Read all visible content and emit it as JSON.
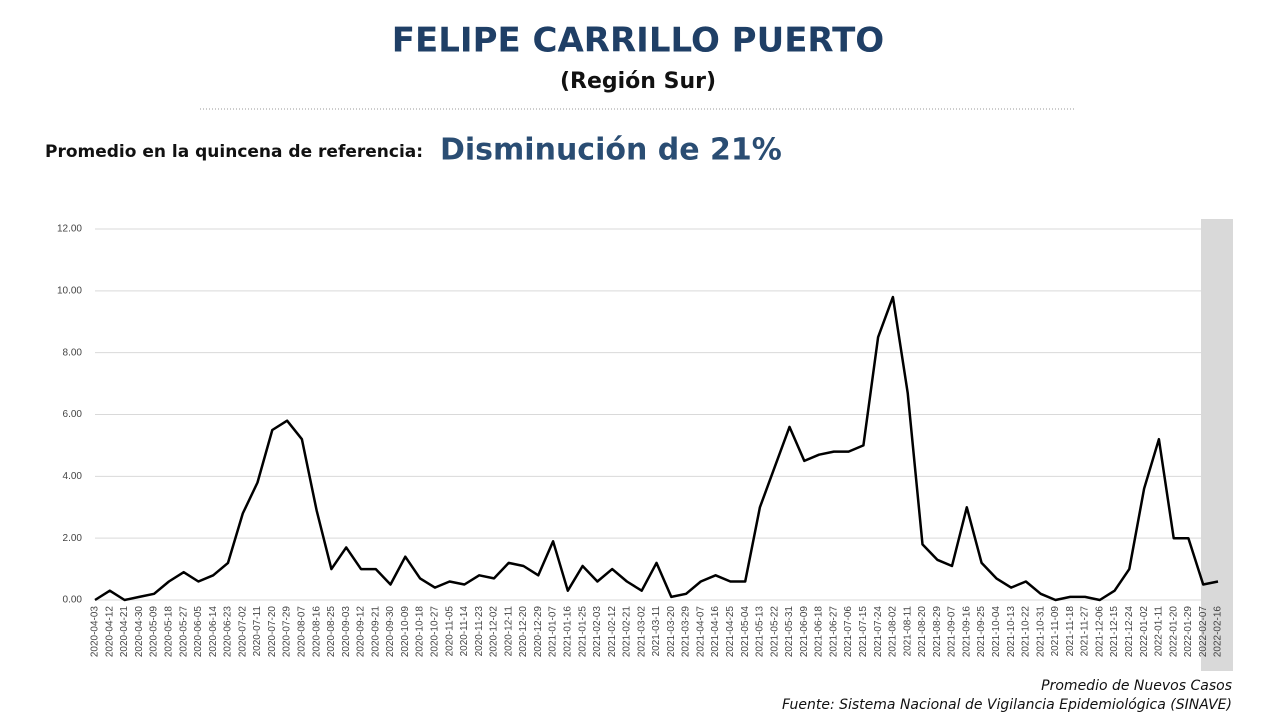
{
  "chart_data": {
    "type": "line",
    "title": "FELIPE CARRILLO PUERTO",
    "subtitle": "(Región Sur)",
    "reference_label": "Promedio en la quincena de referencia:",
    "reference_value": "Disminución de 21%",
    "series_label": "Promedio de Nuevos Casos",
    "source": "Fuente: Sistema Nacional de Vigilancia Epidemiológica (SINAVE)",
    "categories": [
      "2020-04-03",
      "2020-04-12",
      "2020-04-21",
      "2020-04-30",
      "2020-05-09",
      "2020-05-18",
      "2020-05-27",
      "2020-06-05",
      "2020-06-14",
      "2020-06-23",
      "2020-07-02",
      "2020-07-11",
      "2020-07-20",
      "2020-07-29",
      "2020-08-07",
      "2020-08-16",
      "2020-08-25",
      "2020-09-03",
      "2020-09-12",
      "2020-09-21",
      "2020-09-30",
      "2020-10-09",
      "2020-10-18",
      "2020-10-27",
      "2020-11-05",
      "2020-11-14",
      "2020-11-23",
      "2020-12-02",
      "2020-12-11",
      "2020-12-20",
      "2020-12-29",
      "2021-01-07",
      "2021-01-16",
      "2021-01-25",
      "2021-02-03",
      "2021-02-12",
      "2021-02-21",
      "2021-03-02",
      "2021-03-11",
      "2021-03-20",
      "2021-03-29",
      "2021-04-07",
      "2021-04-16",
      "2021-04-25",
      "2021-05-04",
      "2021-05-13",
      "2021-05-22",
      "2021-05-31",
      "2021-06-09",
      "2021-06-18",
      "2021-06-27",
      "2021-07-06",
      "2021-07-15",
      "2021-07-24",
      "2021-08-02",
      "2021-08-11",
      "2021-08-20",
      "2021-08-29",
      "2021-09-07",
      "2021-09-16",
      "2021-09-25",
      "2021-10-04",
      "2021-10-13",
      "2021-10-22",
      "2021-10-31",
      "2021-11-09",
      "2021-11-18",
      "2021-11-27",
      "2021-12-06",
      "2021-12-15",
      "2021-12-24",
      "2022-01-02",
      "2022-01-11",
      "2022-01-20",
      "2022-01-29",
      "2022-02-07",
      "2022-02-16"
    ],
    "values": [
      0,
      0.3,
      0,
      0.1,
      0.2,
      0.6,
      0.9,
      0.6,
      0.8,
      1.2,
      2.8,
      3.8,
      5.5,
      5.8,
      5.2,
      2.9,
      1.0,
      1.7,
      1.0,
      1.0,
      0.5,
      1.4,
      0.7,
      0.4,
      0.6,
      0.5,
      0.8,
      0.7,
      1.2,
      1.1,
      0.8,
      1.9,
      0.3,
      1.1,
      0.6,
      1.0,
      0.6,
      0.3,
      1.2,
      0.1,
      0.2,
      0.6,
      0.8,
      0.6,
      0.6,
      3.0,
      4.3,
      5.6,
      4.5,
      4.7,
      4.8,
      4.8,
      5.0,
      8.5,
      9.8,
      6.7,
      1.8,
      1.3,
      1.1,
      3.0,
      1.2,
      0.7,
      0.4,
      0.6,
      0.2,
      0,
      0.1,
      0.1,
      0,
      0.3,
      1.0,
      3.6,
      5.2,
      2.0,
      2.0,
      0.5,
      0.6
    ],
    "color": "#000000",
    "ylim": [
      0,
      12
    ],
    "yticks": [
      {
        "value": 0,
        "label": "0.00"
      },
      {
        "value": 2,
        "label": "2.00"
      },
      {
        "value": 4,
        "label": "4.00"
      },
      {
        "value": 6,
        "label": "6.00"
      },
      {
        "value": 8,
        "label": "8.00"
      },
      {
        "value": 10,
        "label": "10.00"
      },
      {
        "value": 12,
        "label": "12.00"
      }
    ],
    "grid": true
  }
}
